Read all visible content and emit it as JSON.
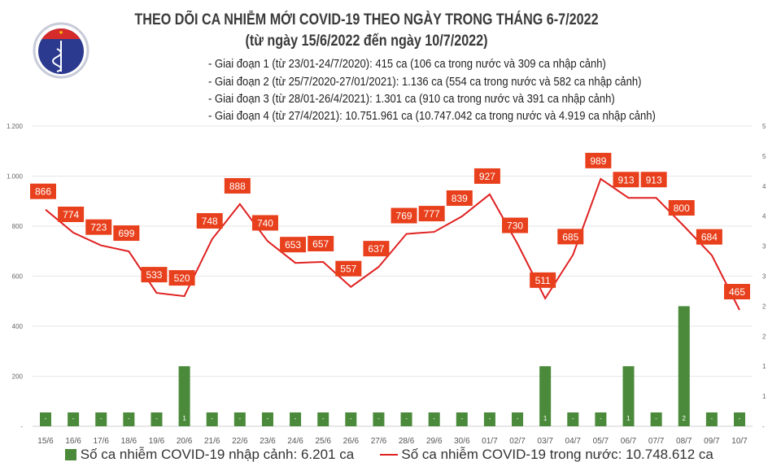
{
  "header": {
    "logo_text": "BỘ Y TẾ · MINISTRY OF HEALTH",
    "title": "THEO DÕI CA NHIỄM MỚI COVID-19 THEO NGÀY TRONG THÁNG 6-7/2022",
    "subtitle": "(từ ngày 15/6/2022 đến ngày 10/7/2022)",
    "stages": [
      "- Giai đoạn 1 (từ 23/01-24/7/2020): 415 ca (106 ca trong nước và 309 ca nhập cảnh)",
      "- Giai đoạn 2 (từ 25/7/2020-27/01/2021): 1.136 ca (554 ca trong nước và 582 ca nhập cảnh)",
      "- Giai đoạn 3 (từ 28/01-26/4/2021): 1.301 ca (910 ca trong nước và 391 ca nhập cảnh)",
      "- Giai đoạn 4 (từ 27/4/2021): 10.751.961 ca (10.747.042 ca trong nước và 4.919 ca nhập cảnh)"
    ]
  },
  "chart_data": {
    "type": "bar+line",
    "categories": [
      "15/6",
      "16/6",
      "17/6",
      "18/6",
      "19/6",
      "20/6",
      "21/6",
      "22/6",
      "23/6",
      "24/6",
      "25/6",
      "26/6",
      "27/6",
      "28/6",
      "29/6",
      "30/6",
      "01/7",
      "02/7",
      "03/7",
      "04/7",
      "05/7",
      "06/7",
      "07/7",
      "08/7",
      "09/7",
      "10/7"
    ],
    "series": [
      {
        "name": "Số ca nhiễm COVID-19 nhập cảnh: 6.201 ca",
        "type": "bar",
        "axis": "right",
        "color": "#4a8a3a",
        "values": [
          0,
          0,
          0,
          0,
          0,
          1,
          0,
          0,
          0,
          0,
          0,
          0,
          0,
          0,
          0,
          0,
          0,
          0,
          1,
          0,
          0,
          1,
          0,
          2,
          0,
          0
        ]
      },
      {
        "name": "Số ca nhiễm COVID-19 trong nước: 10.748.612 ca",
        "type": "line",
        "axis": "left",
        "color": "#e02020",
        "label_color": "#e8401c",
        "values": [
          866,
          774,
          723,
          699,
          533,
          520,
          748,
          888,
          740,
          653,
          657,
          557,
          637,
          769,
          777,
          839,
          927,
          730,
          511,
          685,
          989,
          913,
          913,
          800,
          684,
          465
        ]
      }
    ],
    "left_axis": {
      "ylim": [
        0,
        1200
      ],
      "ticks": [
        "-",
        "200",
        "400",
        "600",
        "800",
        "1.000",
        "1.200"
      ]
    },
    "right_axis": {
      "ylim": [
        0,
        5
      ],
      "ticks": [
        "-",
        "1",
        "1",
        "2",
        "2",
        "3",
        "3",
        "4",
        "4",
        "5",
        "5"
      ]
    },
    "zero_label": "-",
    "grid": true,
    "legend": "bottom"
  }
}
